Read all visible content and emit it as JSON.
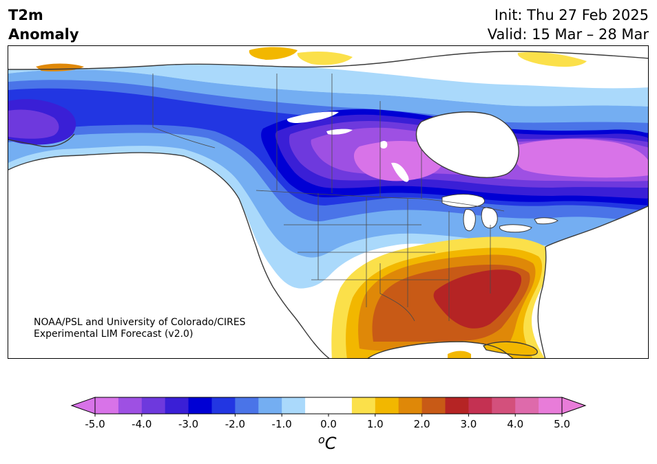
{
  "title": {
    "line1": "T2m",
    "line2": "Anomaly"
  },
  "dates": {
    "init": "Init: Thu 27 Feb 2025",
    "valid": "Valid: 15 Mar – 28 Mar"
  },
  "credit": {
    "line1": "NOAA/PSL and University of Colorado/CIRES",
    "line2": "Experimental LIM Forecast (v2.0)"
  },
  "colorbar": {
    "unit_base": "o",
    "unit_letter": "C",
    "ticks": [
      "-5.0",
      "-4.0",
      "-3.0",
      "-2.0",
      "-1.0",
      "0.0",
      "1.0",
      "2.0",
      "3.0",
      "4.0",
      "5.0"
    ],
    "colors": [
      "#d873e8",
      "#9e50e3",
      "#6e39dd",
      "#3a1fd6",
      "#0000d4",
      "#2236e2",
      "#4a74e8",
      "#74aef2",
      "#aad9fb",
      "#ffffff",
      "#ffffff",
      "#fbe04a",
      "#f2b700",
      "#df8808",
      "#c85a16",
      "#b52424",
      "#c43152",
      "#d3507c",
      "#de6aab",
      "#e87cd9"
    ],
    "under_color": "#d873e8",
    "over_color": "#e87cd9"
  },
  "map": {
    "region": "North America",
    "palette": {
      "cold5": "#d873e8",
      "cold4": "#9e50e3",
      "cold35": "#6e39dd",
      "cold3": "#3a1fd6",
      "cold25": "#0000d4",
      "cold2": "#2236e2",
      "cold15": "#4a74e8",
      "cold1": "#74aef2",
      "cold05": "#aad9fb",
      "warm05": "#fbe04a",
      "warm1": "#f2b700",
      "warm15": "#df8808",
      "warm2": "#c85a16",
      "warm25": "#b52424",
      "coast": "#3a3a3a"
    }
  }
}
